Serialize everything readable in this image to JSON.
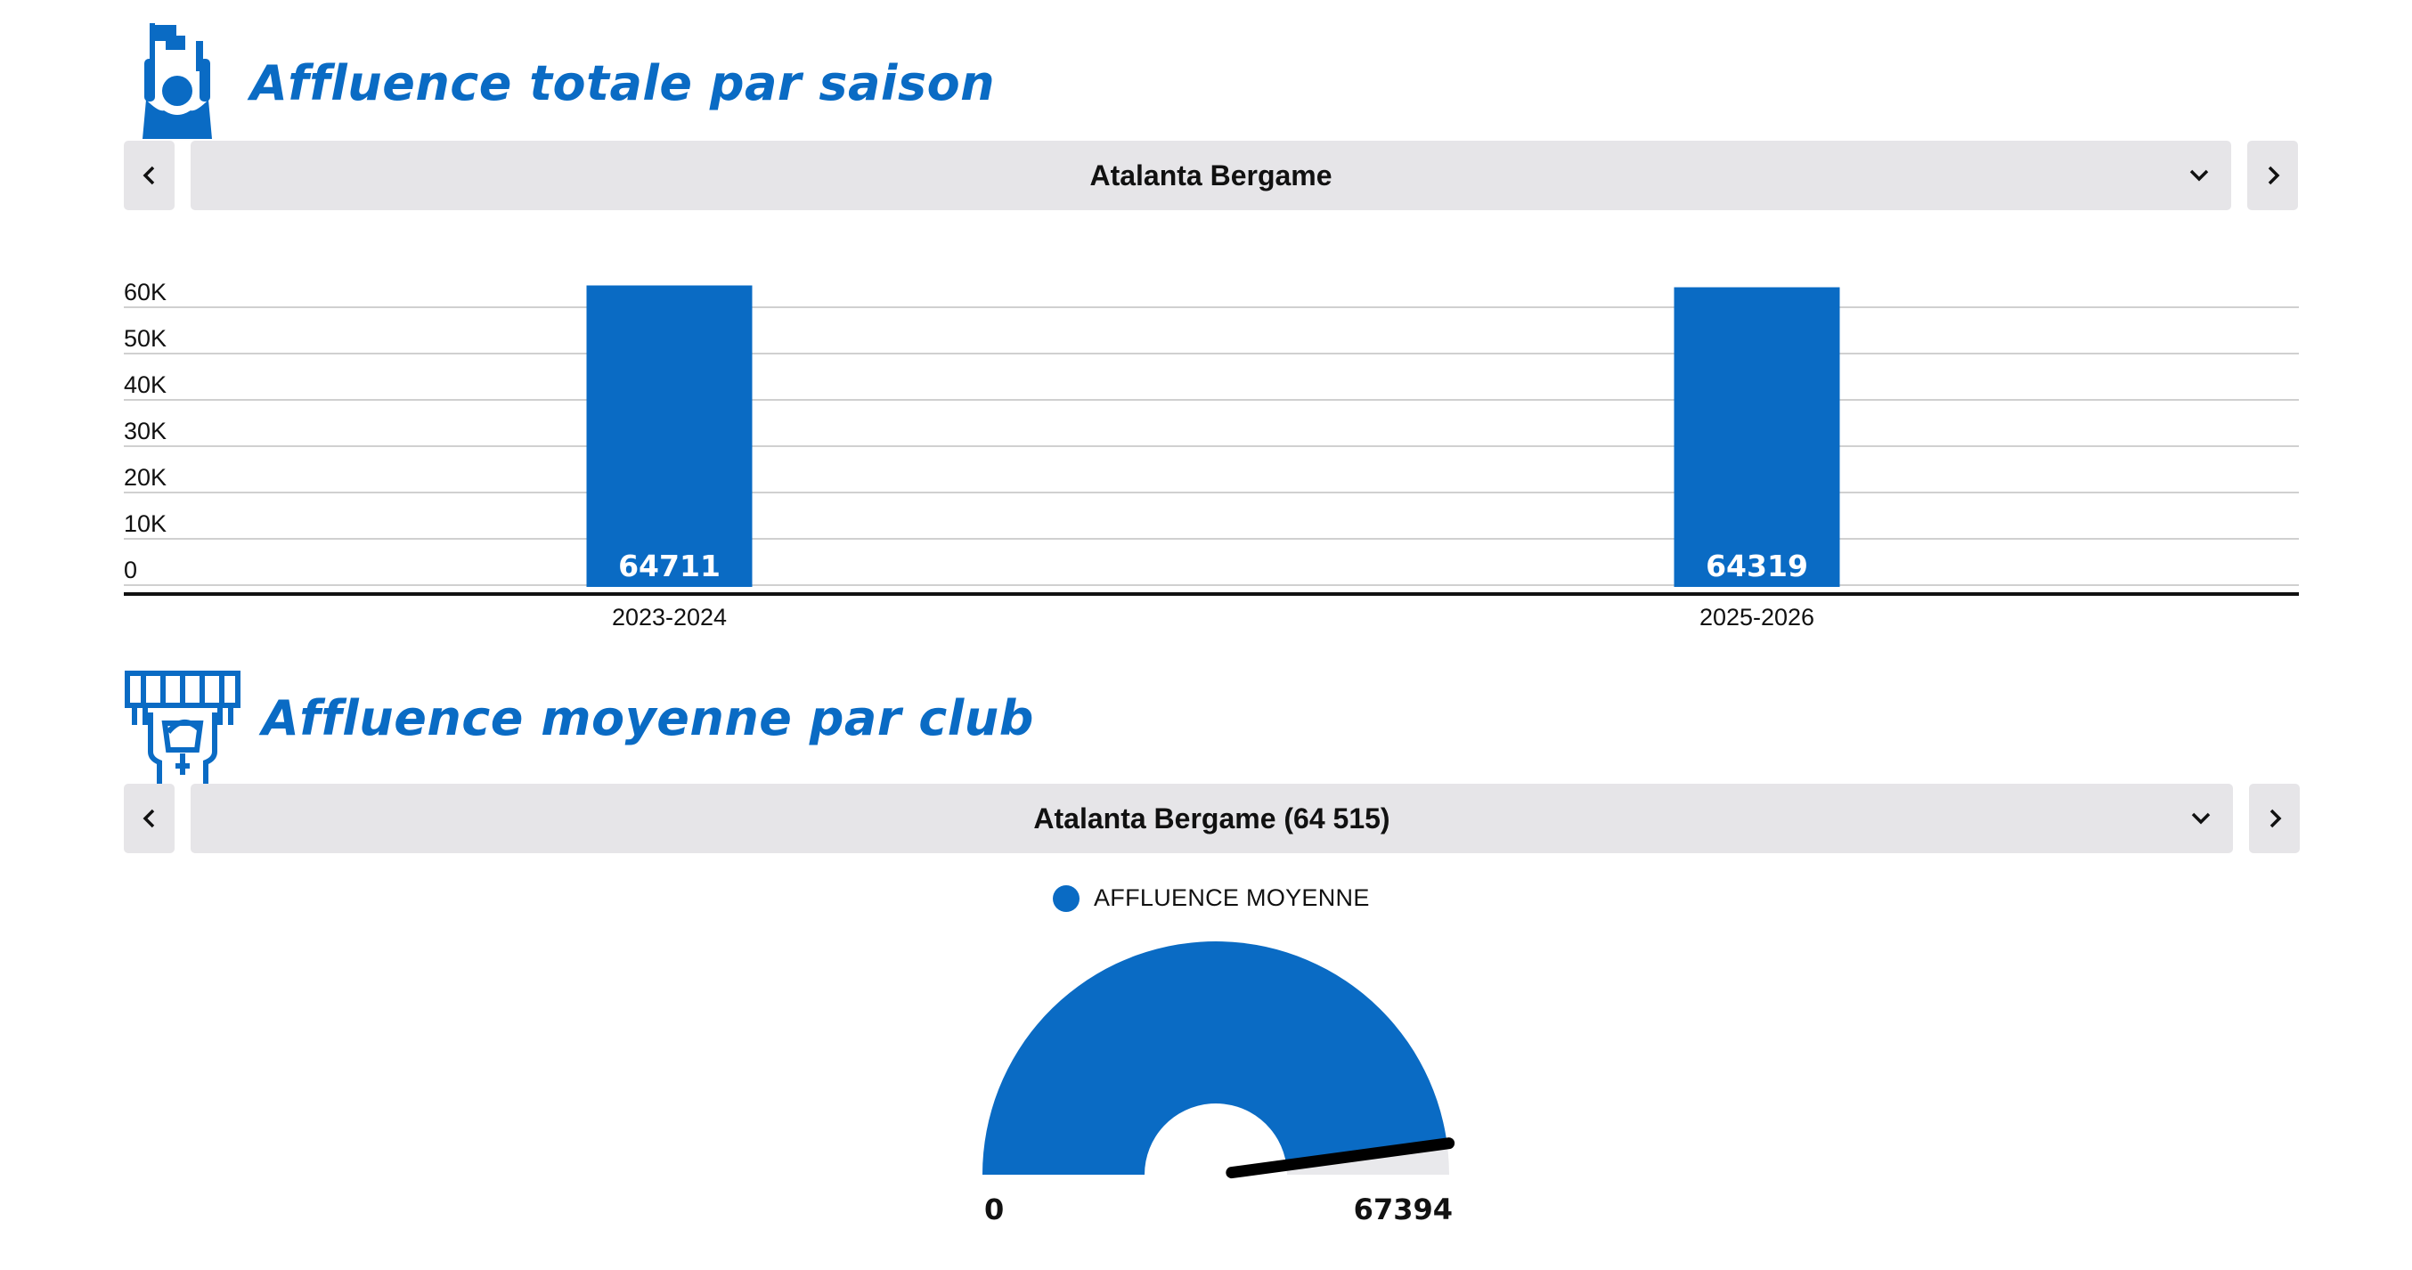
{
  "section1": {
    "title": "Affluence totale par saison",
    "icon": "fan-flag-icon",
    "selector": {
      "selected": "Atalanta Bergame",
      "prev_icon": "chevron-left-icon",
      "next_icon": "chevron-right-icon"
    }
  },
  "section2": {
    "title": "Affluence moyenne par club",
    "icon": "supporter-scarf-icon",
    "selector": {
      "selected": "Atalanta Bergame (64 515)",
      "prev_icon": "chevron-left-icon",
      "next_icon": "chevron-right-icon"
    }
  },
  "colors": {
    "accent": "#0a6bc4",
    "control_bg": "#e6e5e8"
  },
  "chart_data": [
    {
      "type": "bar",
      "categories": [
        "2023-2024",
        "2025-2026"
      ],
      "values": [
        64711,
        64319
      ],
      "data_labels": [
        "64711",
        "64319"
      ],
      "yticks": [
        "0",
        "10K",
        "20K",
        "30K",
        "40K",
        "50K",
        "60K"
      ],
      "ylim": [
        0,
        60000
      ],
      "grid": true,
      "legend": "none"
    },
    {
      "type": "gauge",
      "series": [
        {
          "name": "AFFLUENCE MOYENNE",
          "values": [
            64515
          ]
        }
      ],
      "min": 0,
      "max": 67394,
      "min_label": "0",
      "max_label": "67394",
      "legend": "top-center"
    }
  ]
}
